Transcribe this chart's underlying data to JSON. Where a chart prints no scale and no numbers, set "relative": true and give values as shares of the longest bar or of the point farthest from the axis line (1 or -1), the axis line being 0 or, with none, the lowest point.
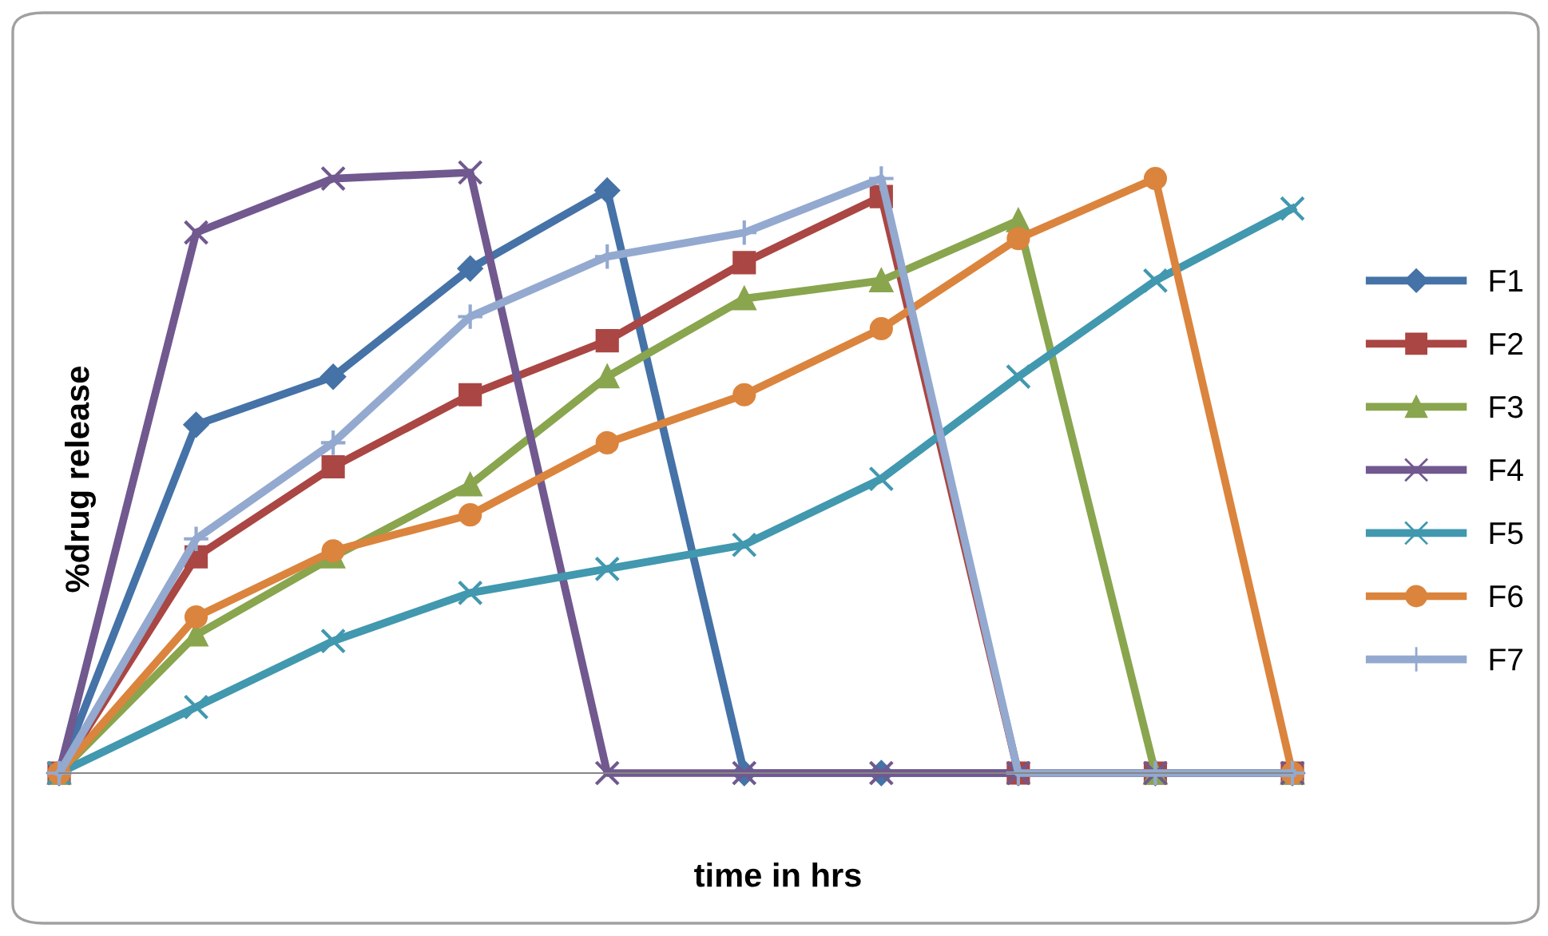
{
  "chart_data": {
    "type": "line",
    "relative": true,
    "xlabel": "time in hrs",
    "ylabel": "%drug release",
    "legend": "right",
    "tick_labels": false,
    "line_style": "solid",
    "categories": [
      null,
      null,
      null,
      null,
      null,
      null,
      null,
      null,
      null,
      null
    ],
    "series": [
      {
        "name": "F1",
        "color": "#4572a7",
        "marker": "diamond",
        "values": [
          0,
          0.58,
          0.66,
          0.84,
          0.97,
          0,
          0,
          0,
          0,
          0
        ]
      },
      {
        "name": "F2",
        "color": "#aa4643",
        "marker": "square",
        "values": [
          0,
          0.36,
          0.51,
          0.63,
          0.72,
          0.85,
          0.96,
          0,
          0,
          0
        ]
      },
      {
        "name": "F3",
        "color": "#89a54e",
        "marker": "triangle",
        "values": [
          0,
          0.23,
          0.36,
          0.48,
          0.66,
          0.79,
          0.82,
          0.92,
          0,
          0
        ]
      },
      {
        "name": "F4",
        "color": "#71588f",
        "marker": "cross",
        "values": [
          0,
          0.9,
          0.99,
          1,
          0,
          0,
          0,
          0,
          0,
          0
        ]
      },
      {
        "name": "F5",
        "color": "#4198af",
        "marker": "cross",
        "values": [
          0,
          0.11,
          0.22,
          0.3,
          0.34,
          0.38,
          0.49,
          0.66,
          0.82,
          0.94
        ]
      },
      {
        "name": "F6",
        "color": "#db843d",
        "marker": "circle",
        "values": [
          0,
          0.26,
          0.37,
          0.43,
          0.55,
          0.63,
          0.74,
          0.89,
          0.99,
          0
        ]
      },
      {
        "name": "F7",
        "color": "#93a9cf",
        "marker": "plus",
        "values": [
          0,
          0.39,
          0.55,
          0.76,
          0.86,
          0.9,
          0.99,
          0,
          0,
          0
        ]
      }
    ]
  }
}
